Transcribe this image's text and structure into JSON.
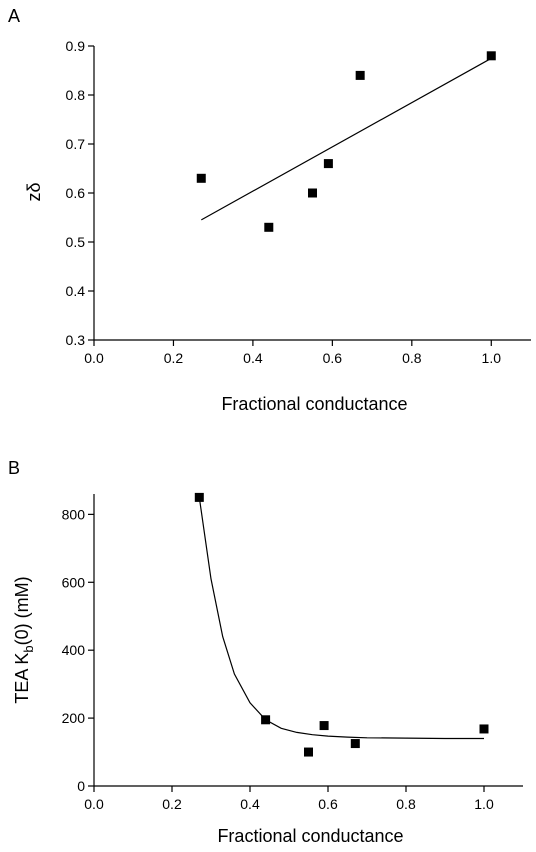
{
  "chart_data": [
    {
      "type": "scatter",
      "panel_label": "A",
      "xlabel": "Fractional conductance",
      "ylabel": "zδ",
      "xlim": [
        0.0,
        1.1
      ],
      "ylim": [
        0.3,
        0.9
      ],
      "xticks": [
        0.0,
        0.2,
        0.4,
        0.6,
        0.8,
        1.0
      ],
      "yticks": [
        0.3,
        0.4,
        0.5,
        0.6,
        0.7,
        0.8,
        0.9
      ],
      "xtick_labels": [
        "0.0",
        "0.2",
        "0.4",
        "0.6",
        "0.8",
        "1.0"
      ],
      "ytick_labels": [
        "0.3",
        "0.4",
        "0.5",
        "0.6",
        "0.7",
        "0.8",
        "0.9"
      ],
      "grid": false,
      "series": [
        {
          "marker": "square",
          "x": [
            0.27,
            0.44,
            0.55,
            0.59,
            0.67,
            1.0
          ],
          "y": [
            0.63,
            0.53,
            0.6,
            0.66,
            0.84,
            0.88
          ]
        }
      ],
      "fit_line": {
        "type": "linear",
        "x": [
          0.27,
          1.0
        ],
        "y": [
          0.545,
          0.875
        ]
      }
    },
    {
      "type": "scatter",
      "panel_label": "B",
      "xlabel": "Fractional conductance",
      "ylabel_main": "TEA K",
      "ylabel_sub": "b",
      "ylabel_tail": "(0) (mM)",
      "xlim": [
        0.0,
        1.1
      ],
      "ylim": [
        0,
        860
      ],
      "xticks": [
        0.0,
        0.2,
        0.4,
        0.6,
        0.8,
        1.0
      ],
      "yticks": [
        0,
        200,
        400,
        600,
        800
      ],
      "xtick_labels": [
        "0.0",
        "0.2",
        "0.4",
        "0.6",
        "0.8",
        "1.0"
      ],
      "ytick_labels": [
        "0",
        "200",
        "400",
        "600",
        "800"
      ],
      "grid": false,
      "series": [
        {
          "marker": "square",
          "x": [
            0.27,
            0.44,
            0.55,
            0.59,
            0.67,
            1.0
          ],
          "y": [
            850,
            195,
            100,
            178,
            125,
            168
          ]
        }
      ],
      "fit_curve": {
        "type": "exponential",
        "x": [
          0.27,
          0.3,
          0.33,
          0.36,
          0.4,
          0.44,
          0.48,
          0.52,
          0.56,
          0.6,
          0.65,
          0.7,
          0.8,
          0.9,
          1.0
        ],
        "y": [
          850,
          610,
          440,
          330,
          245,
          195,
          170,
          158,
          151,
          147,
          144,
          142,
          141,
          140,
          140
        ]
      }
    }
  ]
}
